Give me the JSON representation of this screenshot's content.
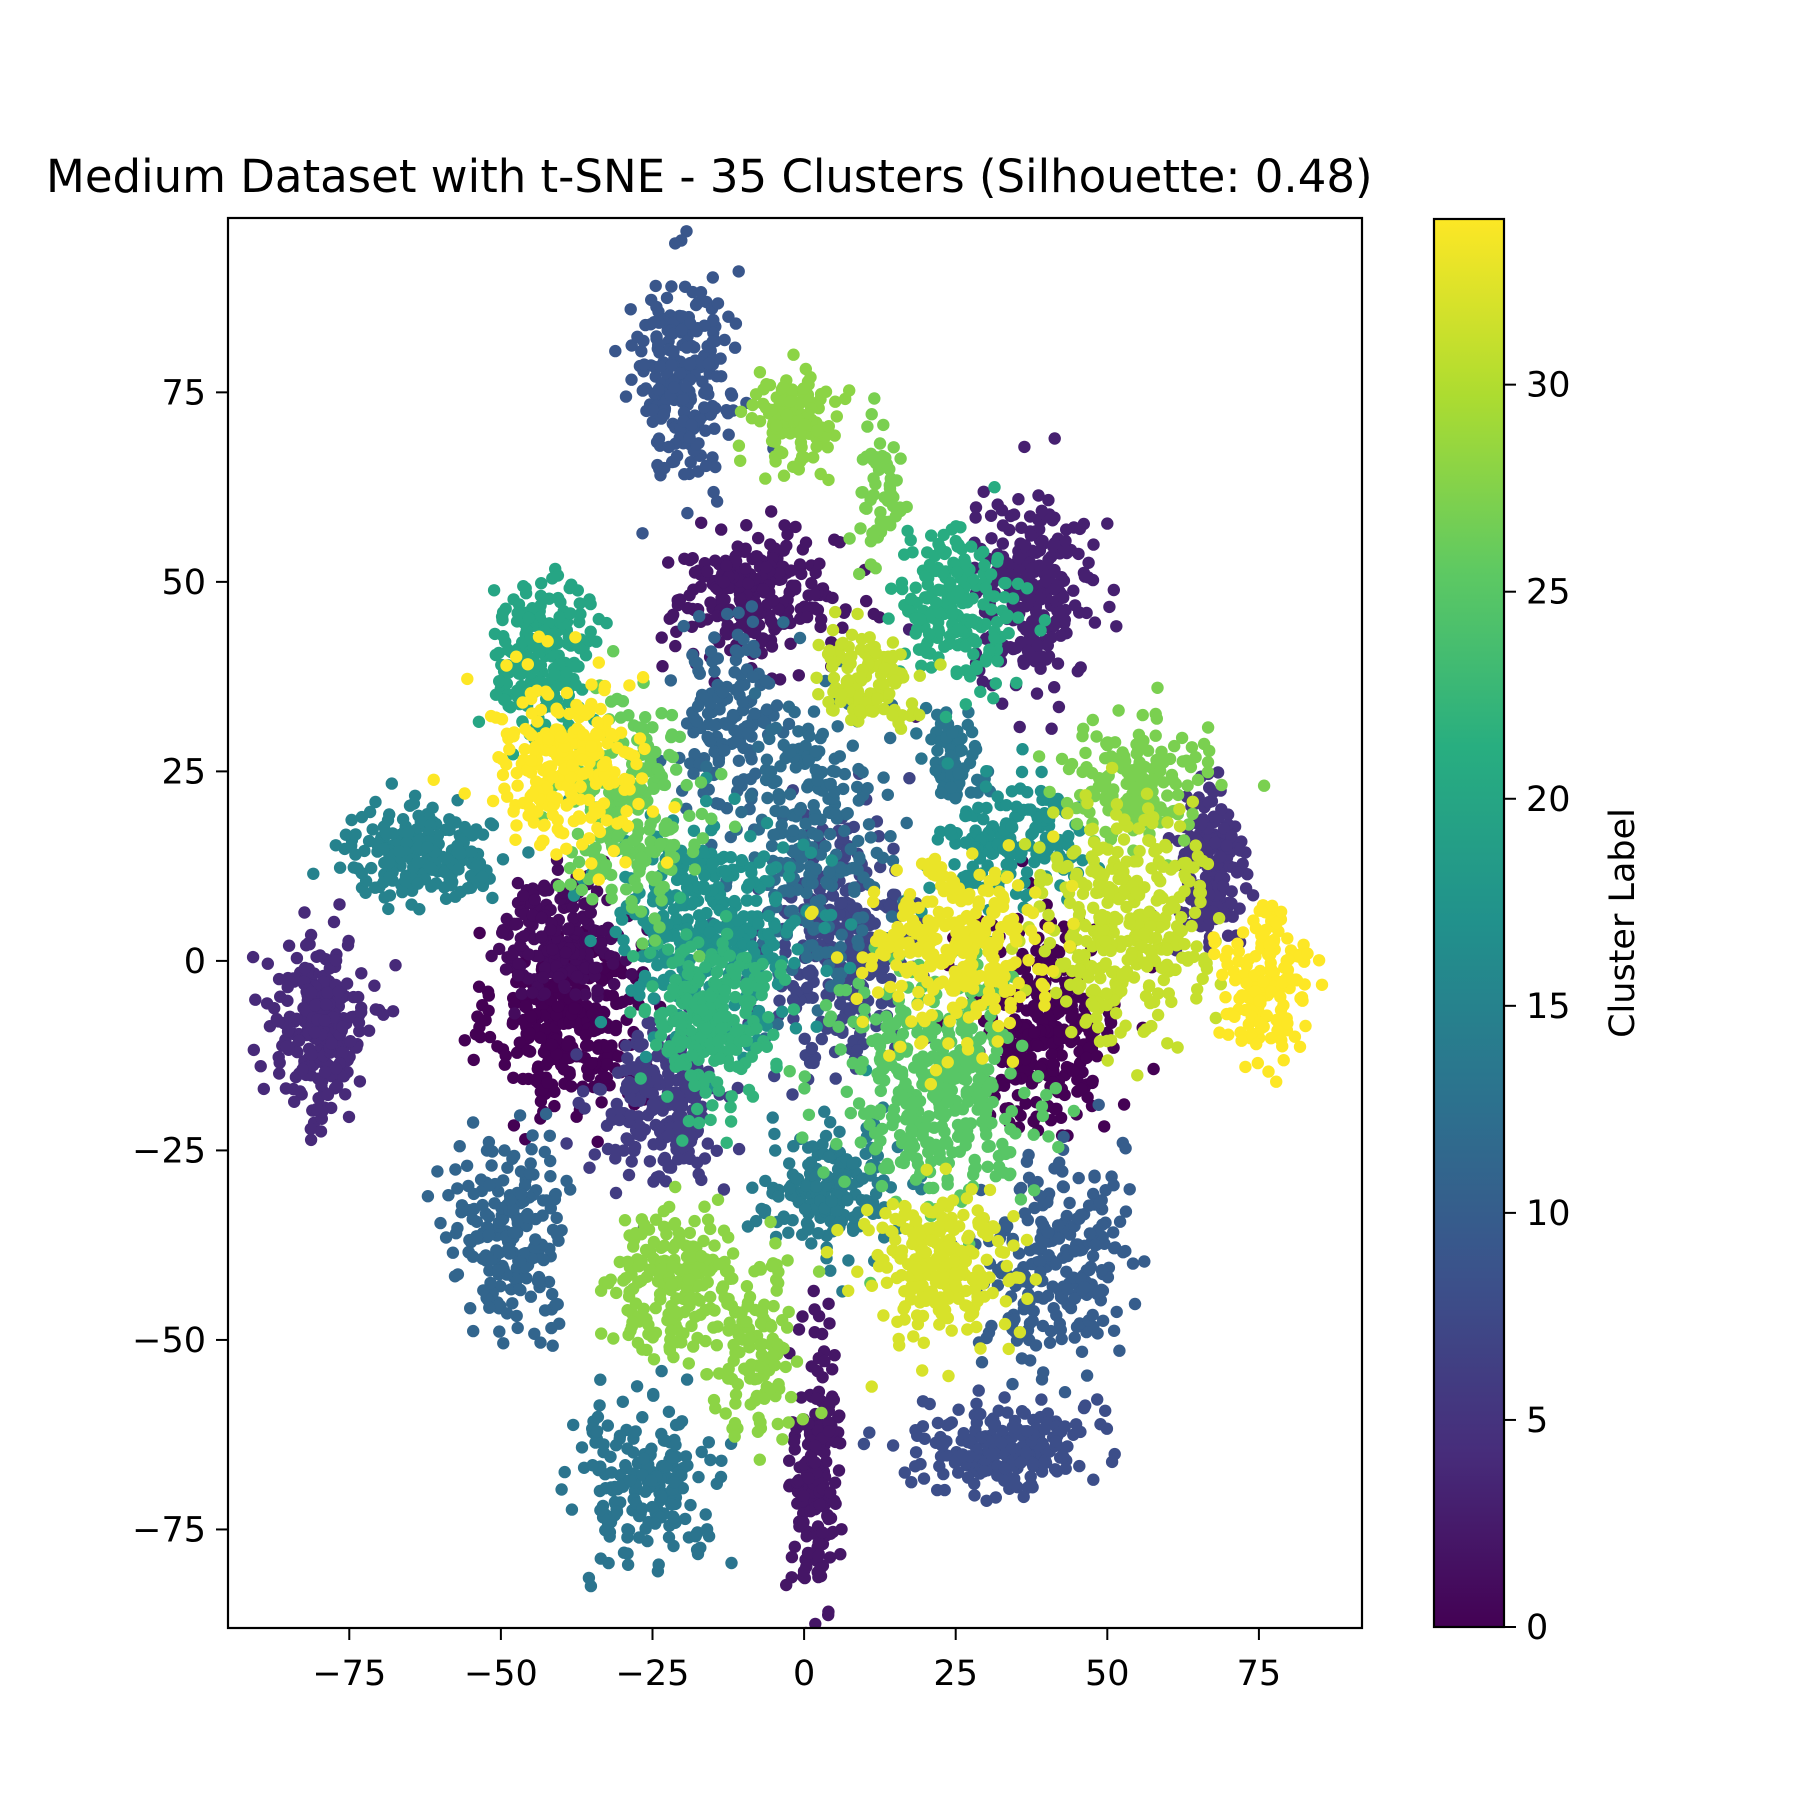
{
  "chart_data": {
    "type": "scatter",
    "title": "Medium Dataset with t-SNE - 35 Clusters (Silhouette: 0.48)",
    "xlabel": "",
    "ylabel": "",
    "xlim": [
      -95,
      92
    ],
    "ylim": [
      -88,
      98
    ],
    "xticks": [
      -75,
      -50,
      -25,
      0,
      25,
      50,
      75
    ],
    "yticks": [
      -75,
      -50,
      -25,
      0,
      25,
      50,
      75
    ],
    "grid": false,
    "colormap": "viridis",
    "colorbar": {
      "label": "Cluster Label",
      "range": [
        0,
        34
      ],
      "ticks": [
        0,
        5,
        10,
        15,
        20,
        25,
        30
      ]
    },
    "clusters": [
      {
        "label": 0,
        "center": [
          -39,
          -8
        ],
        "spread": [
          6,
          6
        ],
        "count": 320
      },
      {
        "label": 0,
        "center": [
          40,
          -8
        ],
        "spread": [
          6,
          7
        ],
        "count": 300
      },
      {
        "label": 1,
        "center": [
          -40,
          3
        ],
        "spread": [
          5,
          4
        ],
        "count": 200
      },
      {
        "label": 2,
        "center": [
          -8,
          48
        ],
        "spread": [
          7,
          4
        ],
        "count": 260
      },
      {
        "label": 2,
        "center": [
          2,
          -67
        ],
        "spread": [
          2,
          9
        ],
        "count": 180
      },
      {
        "label": 3,
        "center": [
          38,
          49
        ],
        "spread": [
          5,
          6
        ],
        "count": 250
      },
      {
        "label": 4,
        "center": [
          -80,
          -9
        ],
        "spread": [
          4,
          6
        ],
        "count": 260
      },
      {
        "label": 5,
        "center": [
          67,
          12
        ],
        "spread": [
          3,
          6
        ],
        "count": 170
      },
      {
        "label": 6,
        "center": [
          -24,
          -19
        ],
        "spread": [
          5,
          5
        ],
        "count": 220
      },
      {
        "label": 7,
        "center": [
          6,
          2
        ],
        "spread": [
          6,
          8
        ],
        "count": 300
      },
      {
        "label": 8,
        "center": [
          33,
          -64
        ],
        "spread": [
          7,
          3
        ],
        "count": 230
      },
      {
        "label": 9,
        "center": [
          -20,
          77
        ],
        "spread": [
          4,
          7
        ],
        "count": 230
      },
      {
        "label": 10,
        "center": [
          41,
          -40
        ],
        "spread": [
          6,
          7
        ],
        "count": 240
      },
      {
        "label": 11,
        "center": [
          -12,
          32
        ],
        "spread": [
          4,
          6
        ],
        "count": 150
      },
      {
        "label": 11,
        "center": [
          -48,
          -36
        ],
        "spread": [
          5,
          6
        ],
        "count": 220
      },
      {
        "label": 12,
        "center": [
          1,
          17
        ],
        "spread": [
          6,
          10
        ],
        "count": 260
      },
      {
        "label": 13,
        "center": [
          25,
          27
        ],
        "spread": [
          3,
          3
        ],
        "count": 70
      },
      {
        "label": 13,
        "center": [
          -26,
          -69
        ],
        "spread": [
          6,
          5
        ],
        "count": 200
      },
      {
        "label": 14,
        "center": [
          4,
          -30
        ],
        "spread": [
          6,
          4
        ],
        "count": 170
      },
      {
        "label": 15,
        "center": [
          -64,
          14
        ],
        "spread": [
          6,
          3
        ],
        "count": 210
      },
      {
        "label": 17,
        "center": [
          -15,
          4
        ],
        "spread": [
          8,
          7
        ],
        "count": 340
      },
      {
        "label": 17,
        "center": [
          35,
          16
        ],
        "spread": [
          6,
          4
        ],
        "count": 160
      },
      {
        "label": 20,
        "center": [
          -43,
          40
        ],
        "spread": [
          4,
          5
        ],
        "count": 220
      },
      {
        "label": 21,
        "center": [
          25,
          47
        ],
        "spread": [
          5,
          5
        ],
        "count": 200
      },
      {
        "label": 22,
        "center": [
          -16,
          -8
        ],
        "spread": [
          5,
          6
        ],
        "count": 250
      },
      {
        "label": 25,
        "center": [
          21,
          -17
        ],
        "spread": [
          8,
          8
        ],
        "count": 380
      },
      {
        "label": 26,
        "center": [
          -28,
          20
        ],
        "spread": [
          6,
          7
        ],
        "count": 220
      },
      {
        "label": 27,
        "center": [
          54,
          23
        ],
        "spread": [
          6,
          4
        ],
        "count": 170
      },
      {
        "label": 27,
        "center": [
          12,
          62
        ],
        "spread": [
          2,
          4
        ],
        "count": 60
      },
      {
        "label": 28,
        "center": [
          -1,
          71
        ],
        "spread": [
          4,
          3
        ],
        "count": 120
      },
      {
        "label": 28,
        "center": [
          -22,
          -42
        ],
        "spread": [
          5,
          5
        ],
        "count": 200
      },
      {
        "label": 28,
        "center": [
          -8,
          -50
        ],
        "spread": [
          4,
          6
        ],
        "count": 120
      },
      {
        "label": 31,
        "center": [
          10,
          37
        ],
        "spread": [
          4,
          3
        ],
        "count": 120
      },
      {
        "label": 31,
        "center": [
          53,
          5
        ],
        "spread": [
          7,
          7
        ],
        "count": 340
      },
      {
        "label": 32,
        "center": [
          22,
          -40
        ],
        "spread": [
          6,
          5
        ],
        "count": 240
      },
      {
        "label": 33,
        "center": [
          25,
          1
        ],
        "spread": [
          8,
          6
        ],
        "count": 300
      },
      {
        "label": 34,
        "center": [
          -40,
          26
        ],
        "spread": [
          6,
          6
        ],
        "count": 250
      },
      {
        "label": 34,
        "center": [
          76,
          -2
        ],
        "spread": [
          4,
          5
        ],
        "count": 160
      }
    ]
  }
}
